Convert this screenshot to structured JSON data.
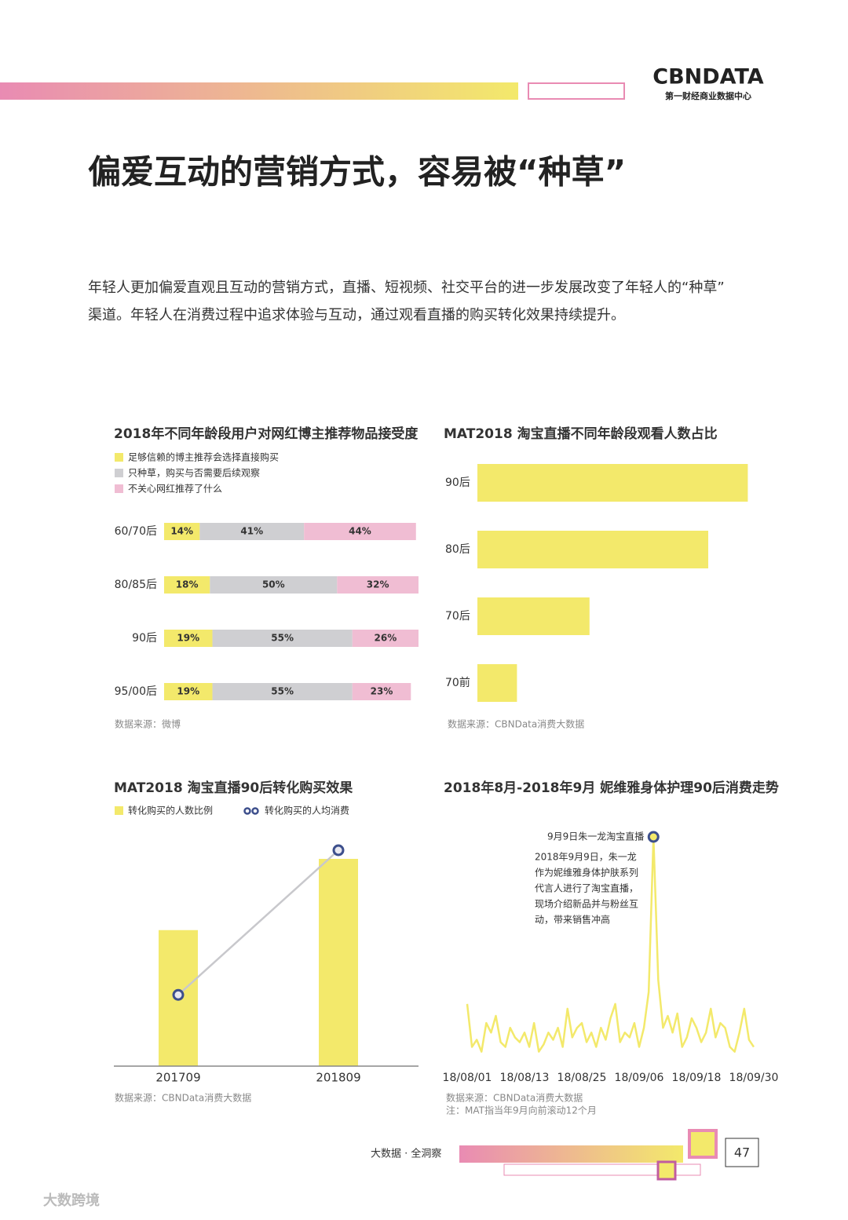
{
  "header": {
    "logo": "CBNDATA",
    "logo_sub": "第一财经商业数据中心"
  },
  "title": "偏爱互动的营销方式，容易被“种草”",
  "paragraph": [
    "年轻人更加偏爱直观且互动的营销方式，直播、短视频、社交平台的进一步发展改变了年轻人的“种草”",
    "渠道。年轻人在消费过程中追求体验与互动，通过观看直播的购买转化效果持续提升。"
  ],
  "chart_data": [
    {
      "type": "stacked-bar",
      "title": "2018年不同年龄段用户对网红博主推荐物品接受度",
      "categories": [
        "60/70后",
        "80/85后",
        "90后",
        "95/00后"
      ],
      "series": [
        {
          "name": "足够信赖的博主推荐会选择直接购买",
          "color": "#f3e96b",
          "values": [
            14,
            18,
            19,
            19
          ],
          "value_labels": [
            "14%",
            "18%",
            "19%",
            "19%"
          ]
        },
        {
          "name": "只种草，购买与否需要后续观察",
          "color": "#cfcfd2",
          "values": [
            41,
            50,
            55,
            55
          ],
          "value_labels": [
            "41%",
            "50%",
            "55%",
            "55%"
          ]
        },
        {
          "name": "不关心网红推荐了什么",
          "color": "#f0bdd3",
          "values": [
            44,
            32,
            26,
            23
          ],
          "value_labels": [
            "44%",
            "32%",
            "26%",
            "23%"
          ]
        }
      ],
      "xlim": [
        0,
        100
      ],
      "source": "数据来源：微博"
    },
    {
      "type": "hbar",
      "title": "MAT2018 淘宝直播不同年龄段观看人数占比",
      "categories": [
        "90后",
        "80后",
        "70后",
        "70前"
      ],
      "values": [
        41,
        35,
        17,
        6
      ],
      "color": "#f3e96b",
      "xlim": [
        0,
        45
      ],
      "source": "数据来源：CBNData消费大数据"
    },
    {
      "type": "combo",
      "title": "MAT2018 淘宝直播90后转化购买效果",
      "categories": [
        "201709",
        "201809"
      ],
      "series": [
        {
          "name": "转化购买的人数比例",
          "kind": "bar",
          "color": "#f3e96b",
          "values": [
            63,
            96
          ]
        },
        {
          "name": "转化购买的人均消费",
          "kind": "line",
          "color": "#3d4f8c",
          "values": [
            33,
            100
          ]
        }
      ],
      "ylim": [
        0,
        100
      ],
      "source": "数据来源：CBNData消费大数据"
    },
    {
      "type": "line",
      "title": "2018年8月-2018年9月 妮维雅身体护理90后消费走势",
      "x": [
        "18/08/01",
        "18/08/02",
        "18/08/03",
        "18/08/04",
        "18/08/05",
        "18/08/06",
        "18/08/07",
        "18/08/08",
        "18/08/09",
        "18/08/10",
        "18/08/11",
        "18/08/12",
        "18/08/13",
        "18/08/14",
        "18/08/15",
        "18/08/16",
        "18/08/17",
        "18/08/18",
        "18/08/19",
        "18/08/20",
        "18/08/21",
        "18/08/22",
        "18/08/23",
        "18/08/24",
        "18/08/25",
        "18/08/26",
        "18/08/27",
        "18/08/28",
        "18/08/29",
        "18/08/30",
        "18/08/31",
        "18/09/01",
        "18/09/02",
        "18/09/03",
        "18/09/04",
        "18/09/05",
        "18/09/06",
        "18/09/07",
        "18/09/08",
        "18/09/09",
        "18/09/10",
        "18/09/11",
        "18/09/12",
        "18/09/13",
        "18/09/14",
        "18/09/15",
        "18/09/16",
        "18/09/17",
        "18/09/18",
        "18/09/19",
        "18/09/20",
        "18/09/21",
        "18/09/22",
        "18/09/23",
        "18/09/24",
        "18/09/25",
        "18/09/26",
        "18/09/27",
        "18/09/28",
        "18/09/29",
        "18/09/30"
      ],
      "values": [
        30,
        12,
        15,
        10,
        22,
        18,
        25,
        14,
        12,
        20,
        16,
        14,
        18,
        12,
        22,
        10,
        13,
        18,
        15,
        20,
        12,
        28,
        16,
        20,
        22,
        14,
        18,
        12,
        20,
        15,
        24,
        30,
        14,
        18,
        16,
        22,
        12,
        20,
        35,
        100,
        40,
        20,
        25,
        18,
        26,
        12,
        16,
        24,
        20,
        14,
        18,
        28,
        16,
        22,
        20,
        12,
        10,
        18,
        28,
        15,
        12
      ],
      "xtick_indices": [
        0,
        12,
        24,
        36,
        48,
        60
      ],
      "color": "#f3e96b",
      "ylim": [
        0,
        100
      ],
      "annotation": {
        "index": 39,
        "label": "9月9日朱一龙淘宝直播",
        "text": [
          "2018年9月9日，朱一龙",
          "作为妮维雅身体护肤系列",
          "代言人进行了淘宝直播，",
          "现场介绍新品并与粉丝互",
          "动，带来销售冲高"
        ]
      },
      "source": [
        "数据来源：CBNData消费大数据",
        "注：MAT指当年9月向前滚动12个月"
      ]
    }
  ],
  "footer": {
    "slogan": "大数据 · 全洞察",
    "page": "47",
    "watermark": "大数跨境"
  }
}
